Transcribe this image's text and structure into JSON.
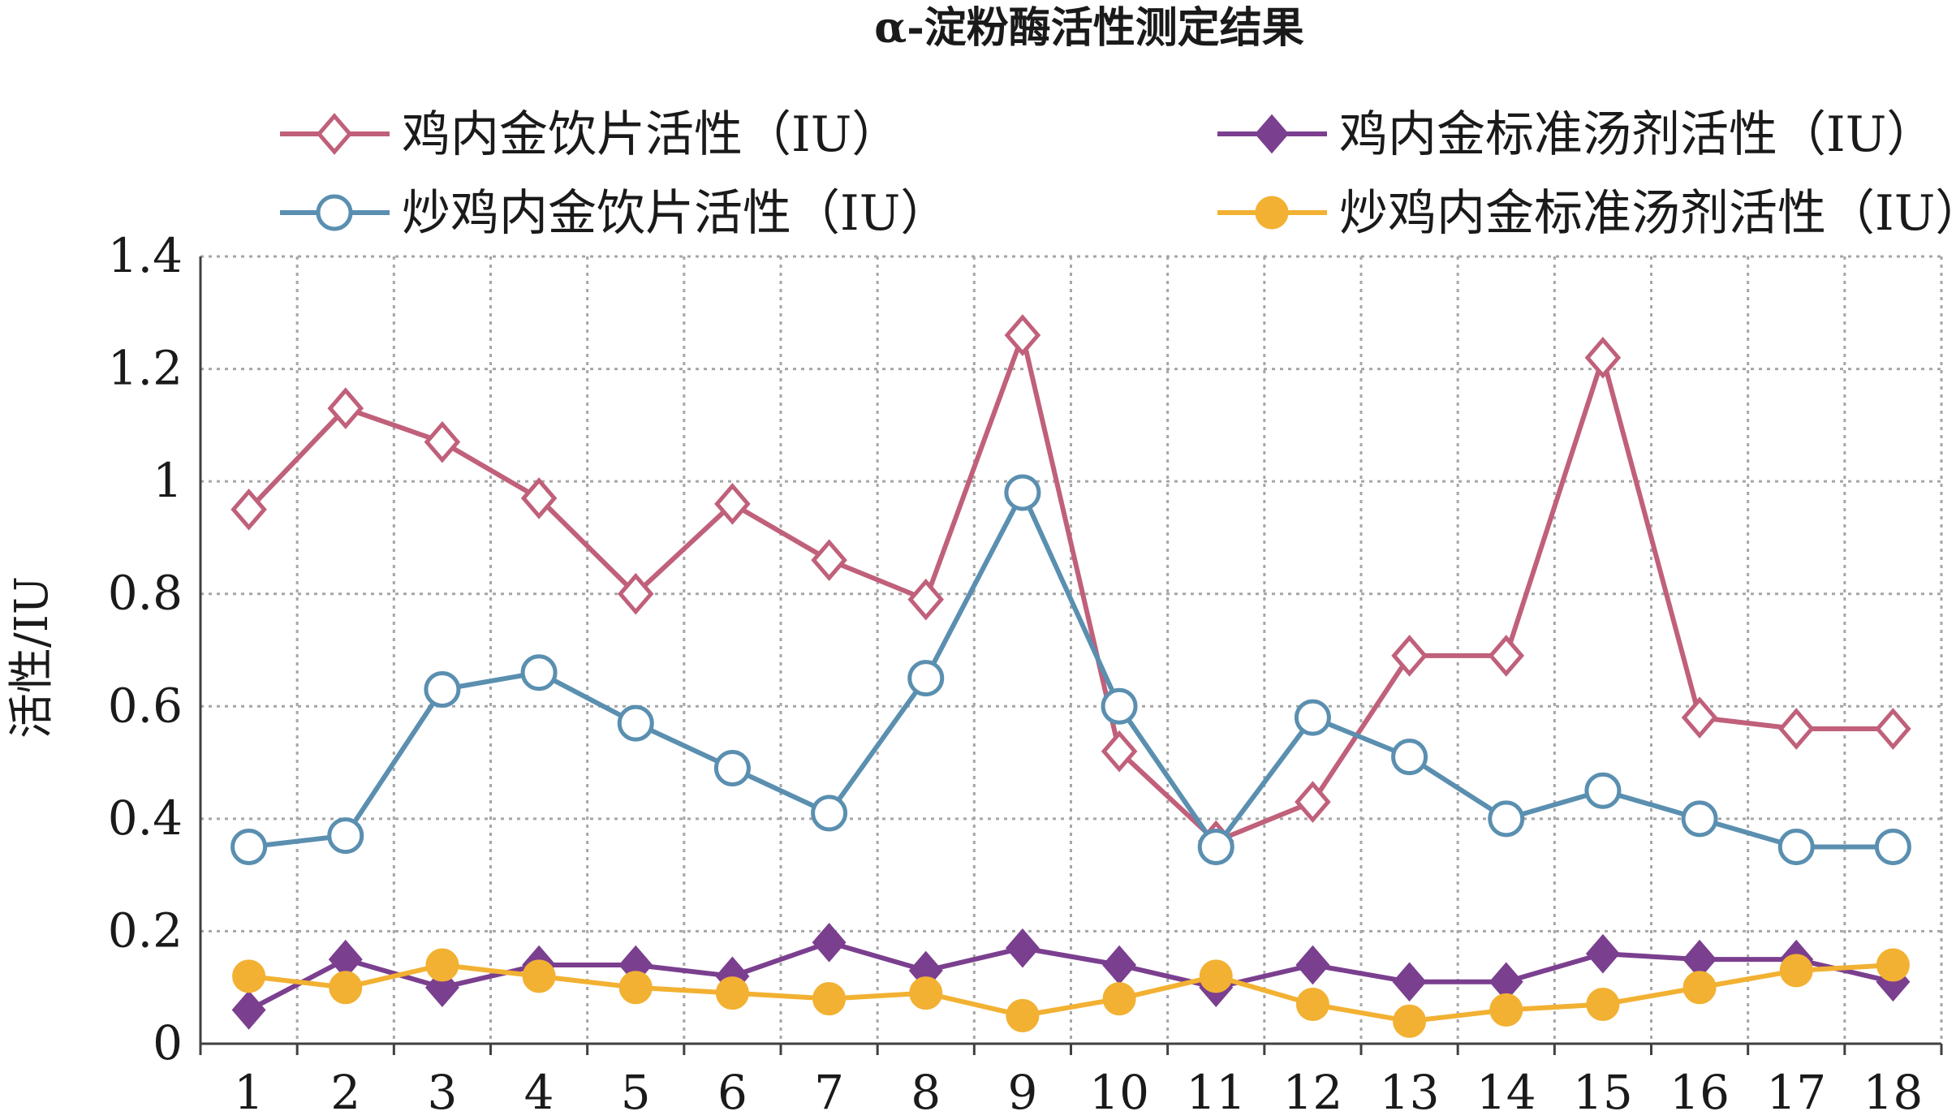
{
  "chart_data": {
    "type": "line",
    "title": "α-淀粉酶活性测定结果",
    "xlabel": "",
    "ylabel": "活性/IU",
    "ylim": [
      0,
      1.4
    ],
    "yticks": [
      0,
      0.2,
      0.4,
      0.6,
      0.8,
      1,
      1.2,
      1.4
    ],
    "ytick_labels": [
      "0",
      "0.2",
      "0.4",
      "0.6",
      "0.8",
      "1",
      "1.2",
      "1.4"
    ],
    "categories": [
      "1",
      "2",
      "3",
      "4",
      "5",
      "6",
      "7",
      "8",
      "9",
      "10",
      "11",
      "12",
      "13",
      "14",
      "15",
      "16",
      "17",
      "18"
    ],
    "grid": true,
    "legend_position": "top",
    "series": [
      {
        "name": "鸡内金饮片活性（IU）",
        "color": "#c0607a",
        "marker": "diamond-open",
        "values": [
          0.95,
          1.13,
          1.07,
          0.97,
          0.8,
          0.96,
          0.86,
          0.79,
          1.26,
          0.52,
          0.36,
          0.43,
          0.69,
          0.69,
          1.22,
          0.58,
          0.56,
          0.56
        ]
      },
      {
        "name": "鸡内金标准汤剂活性（IU）",
        "color": "#7b3f8f",
        "marker": "diamond-filled",
        "values": [
          0.06,
          0.15,
          0.1,
          0.14,
          0.14,
          0.12,
          0.18,
          0.13,
          0.17,
          0.14,
          0.1,
          0.14,
          0.11,
          0.11,
          0.16,
          0.15,
          0.15,
          0.11
        ]
      },
      {
        "name": "炒鸡内金饮片活性（IU）",
        "color": "#5a8fb0",
        "marker": "circle-open",
        "values": [
          0.35,
          0.37,
          0.63,
          0.66,
          0.57,
          0.49,
          0.41,
          0.65,
          0.98,
          0.6,
          0.35,
          0.58,
          0.51,
          0.4,
          0.45,
          0.4,
          0.35,
          0.35
        ]
      },
      {
        "name": "炒鸡内金标准汤剂活性（IU）",
        "color": "#f2b132",
        "marker": "circle-filled",
        "values": [
          0.12,
          0.1,
          0.14,
          0.12,
          0.1,
          0.09,
          0.08,
          0.09,
          0.05,
          0.08,
          0.12,
          0.07,
          0.04,
          0.06,
          0.07,
          0.1,
          0.13,
          0.14
        ]
      }
    ]
  }
}
